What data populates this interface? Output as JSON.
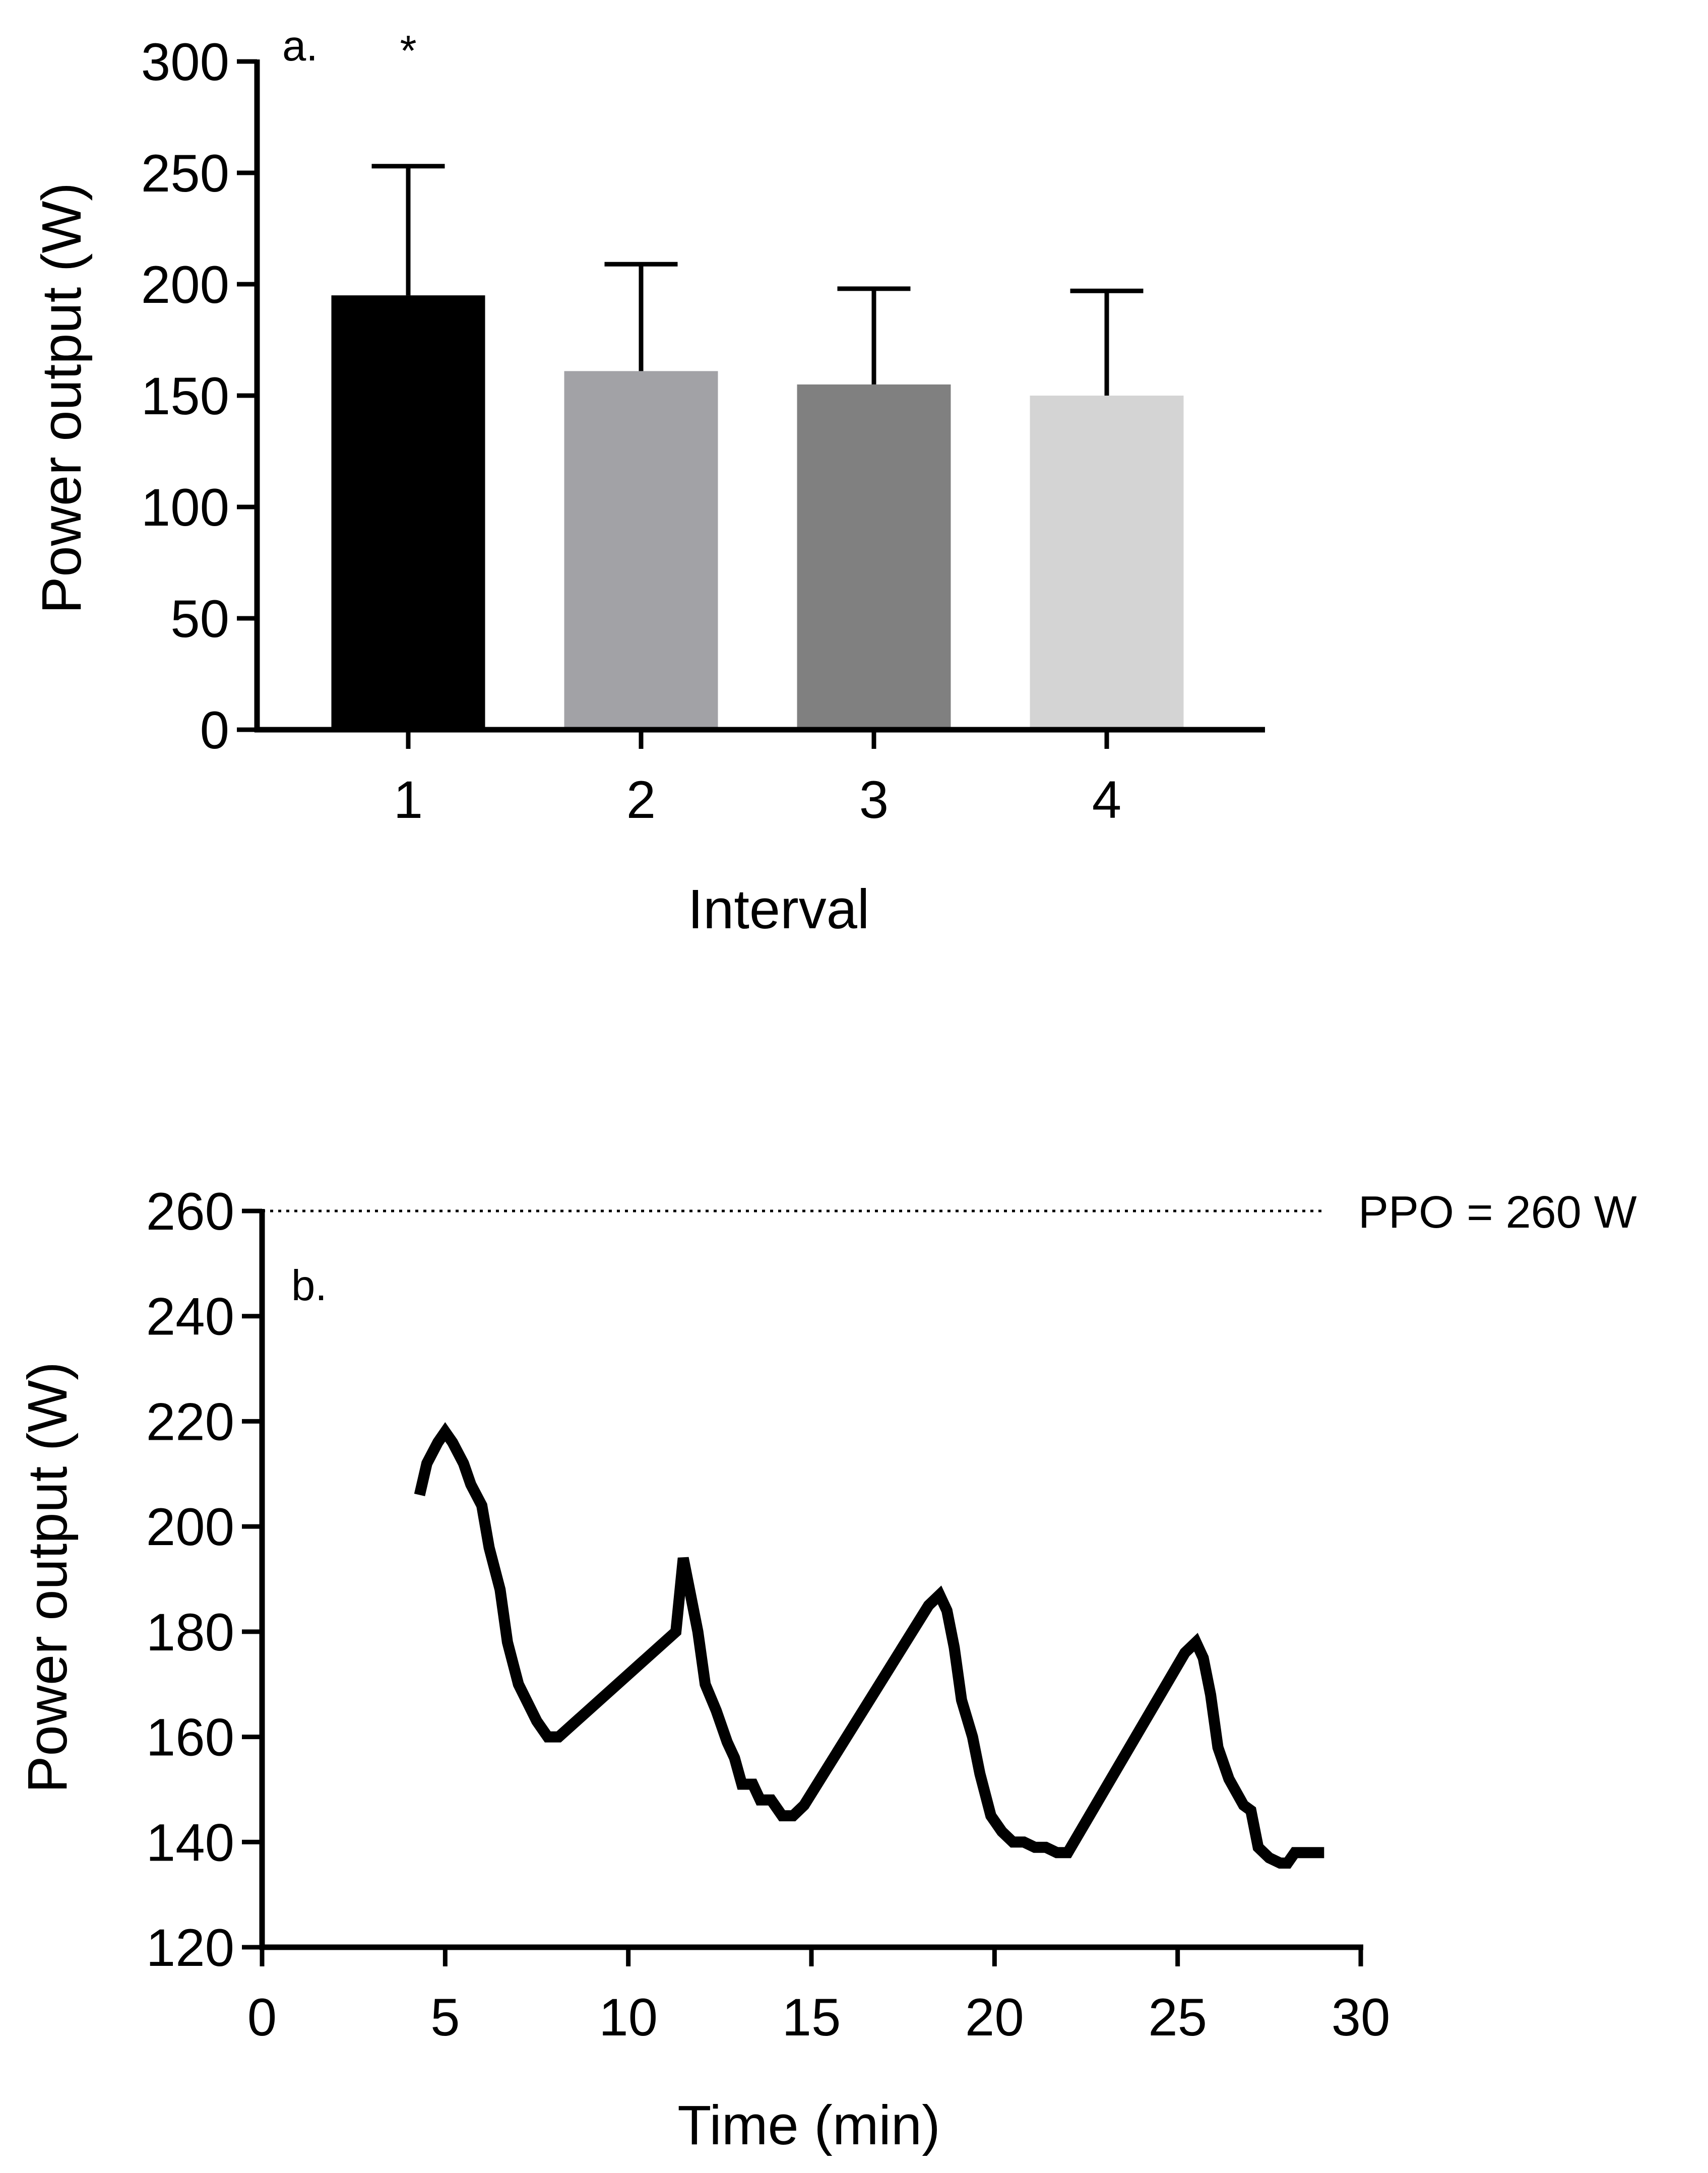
{
  "chart_data": [
    {
      "type": "bar",
      "panel_label": "a.",
      "xlabel": "Interval",
      "ylabel": "Power output (W)",
      "categories": [
        "1",
        "2",
        "3",
        "4"
      ],
      "values": [
        195,
        161,
        155,
        150
      ],
      "error_upper": [
        253,
        209,
        198,
        197
      ],
      "bar_colors": [
        "#000000",
        "#a2a2a6",
        "#808080",
        "#d4d4d4"
      ],
      "significance": [
        "*",
        "",
        "",
        ""
      ],
      "ylim": [
        0,
        300
      ],
      "yticks": [
        0,
        50,
        100,
        150,
        200,
        250,
        300
      ],
      "ytick_labels": [
        "0",
        "50",
        "100",
        "150",
        "200",
        "250",
        "300"
      ]
    },
    {
      "type": "line",
      "panel_label": "b.",
      "xlabel": "Time (min)",
      "ylabel": "Power output (W)",
      "xlim": [
        0,
        30
      ],
      "ylim": [
        120,
        260
      ],
      "xticks": [
        0,
        5,
        10,
        15,
        20,
        25,
        30
      ],
      "xtick_labels": [
        "0",
        "5",
        "10",
        "15",
        "20",
        "25",
        "30"
      ],
      "yticks": [
        120,
        140,
        160,
        180,
        200,
        220,
        240,
        260
      ],
      "ytick_labels": [
        "120",
        "140",
        "160",
        "180",
        "200",
        "220",
        "240",
        "260"
      ],
      "reference_line": {
        "value": 260,
        "label": "PPO = 260 W",
        "style": "dotted"
      },
      "series": [
        {
          "name": "Power output",
          "color": "#000000",
          "x": [
            4.3,
            4.5,
            4.8,
            5.0,
            5.2,
            5.5,
            5.7,
            6.0,
            6.2,
            6.5,
            6.7,
            7.0,
            7.5,
            7.8,
            8.1,
            11.3,
            11.5,
            11.7,
            11.9,
            12.1,
            12.4,
            12.7,
            12.9,
            13.1,
            13.4,
            13.6,
            13.9,
            14.2,
            14.5,
            14.8,
            18.2,
            18.5,
            18.7,
            18.9,
            19.1,
            19.4,
            19.6,
            19.9,
            20.2,
            20.5,
            20.8,
            21.1,
            21.4,
            21.7,
            22.0,
            25.2,
            25.5,
            25.7,
            25.9,
            26.1,
            26.4,
            26.8,
            27.0,
            27.2,
            27.5,
            27.8,
            28.0,
            28.2,
            28.5,
            28.8,
            29.0
          ],
          "y": [
            206,
            212,
            216,
            218,
            216,
            212,
            208,
            204,
            196,
            188,
            178,
            170,
            163,
            160,
            160,
            180,
            194,
            187,
            180,
            170,
            165,
            159,
            156,
            151,
            151,
            148,
            148,
            145,
            145,
            147,
            185,
            187,
            184,
            177,
            167,
            160,
            153,
            145,
            142,
            140,
            140,
            139,
            139,
            138,
            138,
            176,
            178,
            175,
            168,
            158,
            152,
            147,
            146,
            139,
            137,
            136,
            136,
            138,
            138,
            138,
            138
          ]
        }
      ]
    }
  ]
}
